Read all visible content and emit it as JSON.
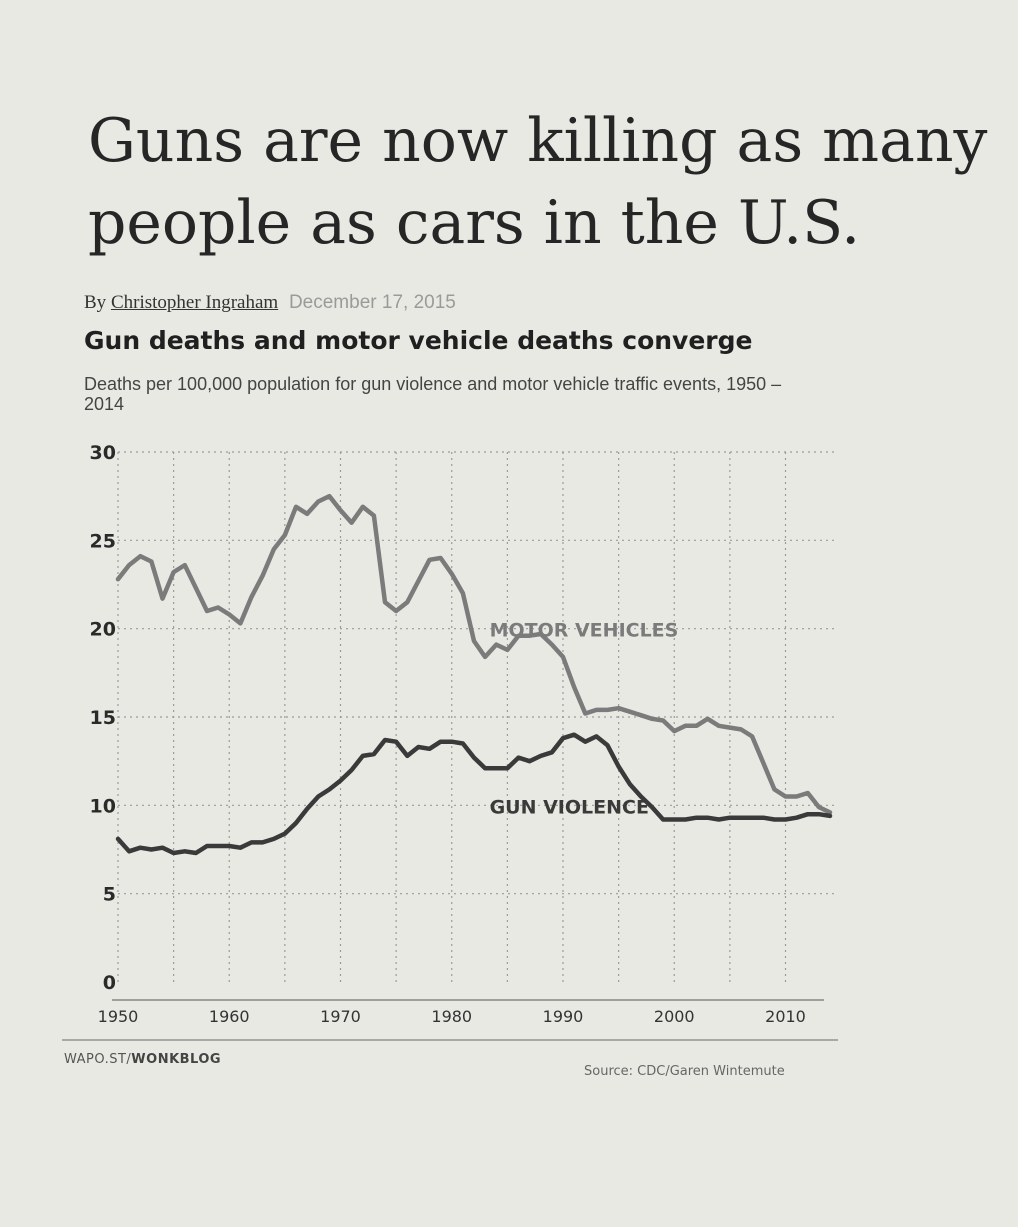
{
  "headline": "Guns are now killing as many people as cars in the U.S.",
  "byline": {
    "prefix": "By",
    "author": "Christopher Ingraham",
    "date": "December 17, 2015"
  },
  "footer": {
    "left_prefix": "WAPO.ST/",
    "left_bold": "WONKBLOG",
    "source": "Source: CDC/Garen Wintemute"
  },
  "colors": {
    "motor": "#7b7b7b",
    "gun": "#3a3a3a",
    "grid": "#9a9a9a"
  },
  "chart_data": {
    "type": "line",
    "title": "Gun deaths and motor vehicle deaths converge",
    "subtitle": "Deaths per 100,000 population for gun violence and motor vehicle traffic events, 1950 – 2014",
    "xlabel": "",
    "ylabel": "",
    "xlim": [
      1950,
      2014
    ],
    "ylim": [
      0,
      30
    ],
    "x_ticks": [
      "1950",
      "1960",
      "1970",
      "1980",
      "1990",
      "2000",
      "2010"
    ],
    "y_ticks": [
      "0",
      "5",
      "10",
      "15",
      "20",
      "25",
      "30"
    ],
    "grid": true,
    "series": [
      {
        "name": "MOTOR VEHICLES",
        "x": [
          1950,
          1951,
          1952,
          1953,
          1954,
          1955,
          1956,
          1957,
          1958,
          1959,
          1960,
          1961,
          1962,
          1963,
          1964,
          1965,
          1966,
          1967,
          1968,
          1969,
          1970,
          1971,
          1972,
          1973,
          1974,
          1975,
          1976,
          1977,
          1978,
          1979,
          1980,
          1981,
          1982,
          1983,
          1984,
          1985,
          1986,
          1987,
          1988,
          1989,
          1990,
          1991,
          1992,
          1993,
          1994,
          1995,
          1996,
          1997,
          1998,
          1999,
          2000,
          2001,
          2002,
          2003,
          2004,
          2005,
          2006,
          2007,
          2008,
          2009,
          2010,
          2011,
          2012,
          2013,
          2014
        ],
        "values": [
          22.8,
          23.6,
          24.1,
          23.8,
          21.7,
          23.2,
          23.6,
          22.3,
          21.0,
          21.2,
          20.8,
          20.3,
          21.8,
          23.0,
          24.5,
          25.3,
          26.9,
          26.5,
          27.2,
          27.5,
          26.7,
          26.0,
          26.9,
          26.4,
          21.5,
          21.0,
          21.5,
          22.7,
          23.9,
          24.0,
          23.1,
          22.0,
          19.3,
          18.4,
          19.1,
          18.8,
          19.6,
          19.6,
          19.7,
          19.1,
          18.4,
          16.7,
          15.2,
          15.4,
          15.4,
          15.5,
          15.3,
          15.1,
          14.9,
          14.8,
          14.2,
          14.5,
          14.5,
          14.9,
          14.5,
          14.4,
          14.3,
          13.9,
          12.4,
          10.9,
          10.5,
          10.5,
          10.7,
          9.9,
          9.6
        ]
      },
      {
        "name": "GUN VIOLENCE",
        "x": [
          1950,
          1951,
          1952,
          1953,
          1954,
          1955,
          1956,
          1957,
          1958,
          1959,
          1960,
          1961,
          1962,
          1963,
          1964,
          1965,
          1966,
          1967,
          1968,
          1969,
          1970,
          1971,
          1972,
          1973,
          1974,
          1975,
          1976,
          1977,
          1978,
          1979,
          1980,
          1981,
          1982,
          1983,
          1984,
          1985,
          1986,
          1987,
          1988,
          1989,
          1990,
          1991,
          1992,
          1993,
          1994,
          1995,
          1996,
          1997,
          1998,
          1999,
          2000,
          2001,
          2002,
          2003,
          2004,
          2005,
          2006,
          2007,
          2008,
          2009,
          2010,
          2011,
          2012,
          2013,
          2014
        ],
        "values": [
          8.1,
          7.4,
          7.6,
          7.5,
          7.6,
          7.3,
          7.4,
          7.3,
          7.7,
          7.7,
          7.7,
          7.6,
          7.9,
          7.9,
          8.1,
          8.4,
          9.0,
          9.8,
          10.5,
          10.9,
          11.4,
          12.0,
          12.8,
          12.9,
          13.7,
          13.6,
          12.8,
          13.3,
          13.2,
          13.6,
          13.6,
          13.5,
          12.7,
          12.1,
          12.1,
          12.1,
          12.7,
          12.5,
          12.8,
          13.0,
          13.8,
          14.0,
          13.6,
          13.9,
          13.4,
          12.2,
          11.2,
          10.5,
          9.9,
          9.2,
          9.2,
          9.2,
          9.3,
          9.3,
          9.2,
          9.3,
          9.3,
          9.3,
          9.3,
          9.2,
          9.2,
          9.3,
          9.5,
          9.5,
          9.4
        ]
      }
    ]
  }
}
